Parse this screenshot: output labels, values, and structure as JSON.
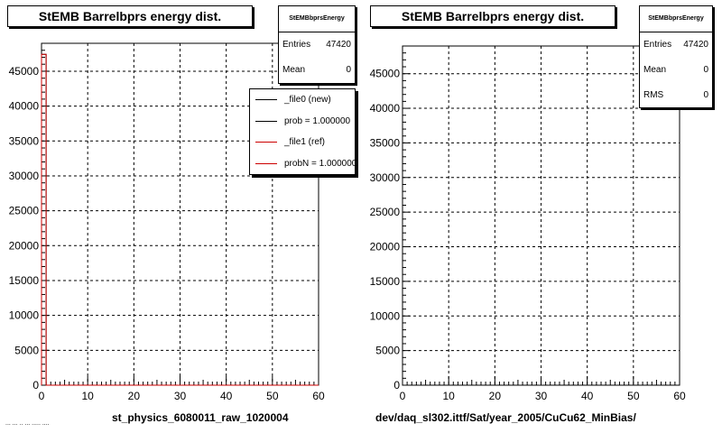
{
  "charts": [
    {
      "title": "StEMB Barrelbprs energy dist.",
      "stats": {
        "name": "StEMBbprsEnergy",
        "rows": [
          {
            "label": "Entries",
            "value": "47420"
          },
          {
            "label": "Mean",
            "value": "0"
          }
        ]
      },
      "legend": [
        {
          "label": "_file0 (new)",
          "color": "#000000"
        },
        {
          "label": "prob = 1.000000",
          "color": "#000000"
        },
        {
          "label": "_file1 (ref)",
          "color": "#cc0000"
        },
        {
          "label": "probN = 1.000000",
          "color": "#cc0000"
        }
      ],
      "bottom_label": "st_physics_6080011_raw_1020004"
    },
    {
      "title": "StEMB Barrelbprs energy dist.",
      "stats": {
        "name": "StEMBbprsEnergy",
        "rows": [
          {
            "label": "Entries",
            "value": "47420"
          },
          {
            "label": "Mean",
            "value": "0"
          },
          {
            "label": "RMS",
            "value": "0"
          }
        ]
      },
      "bottom_label": "dev/daq_sl302.ittf/Sat/year_2005/CuCu62_MinBias/"
    }
  ],
  "corner_note": "... ... .. ... ..... ....",
  "chart_data": [
    {
      "type": "bar",
      "title": "StEMB Barrelbprs energy dist.",
      "xlabel": "",
      "ylabel": "",
      "xlim": [
        0,
        60
      ],
      "ylim": [
        0,
        49000
      ],
      "x_ticks": [
        0,
        10,
        20,
        30,
        40,
        50,
        60
      ],
      "y_ticks": [
        0,
        5000,
        10000,
        15000,
        20000,
        25000,
        30000,
        35000,
        40000,
        45000
      ],
      "y_tick_labels": [
        "0",
        "5000",
        "10000",
        "15000",
        "20000",
        "25000",
        "30000",
        "35000",
        "40000",
        "45000"
      ],
      "grid": true,
      "series": [
        {
          "name": "_file0 (new)",
          "color": "#000000",
          "bins": [
            {
              "x": 0,
              "y": 47420
            }
          ]
        },
        {
          "name": "_file1 (ref)",
          "color": "#cc0000",
          "bins": [
            {
              "x": 0,
              "y": 47420
            }
          ]
        }
      ]
    },
    {
      "type": "bar",
      "title": "StEMB Barrelbprs energy dist.",
      "xlabel": "",
      "ylabel": "",
      "xlim": [
        0,
        60
      ],
      "ylim": [
        0,
        49000
      ],
      "x_ticks": [
        0,
        10,
        20,
        30,
        40,
        50,
        60
      ],
      "y_ticks": [
        0,
        5000,
        10000,
        15000,
        20000,
        25000,
        30000,
        35000,
        40000,
        45000
      ],
      "y_tick_labels": [
        "0",
        "5000",
        "10000",
        "15000",
        "20000",
        "25000",
        "30000",
        "35000",
        "40000",
        "45000"
      ],
      "grid": true,
      "series": []
    }
  ]
}
